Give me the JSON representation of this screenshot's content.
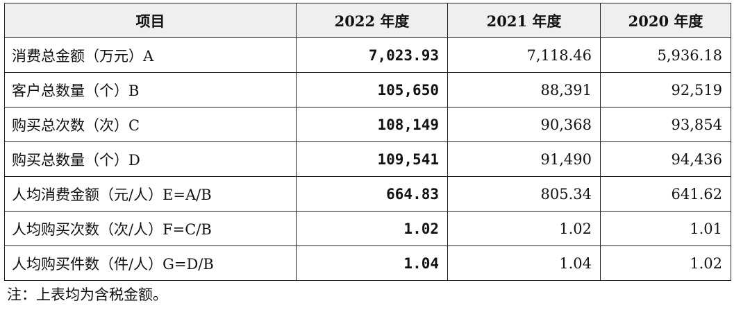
{
  "table": {
    "headers": [
      "项目",
      "2022 年度",
      "2021 年度",
      "2020 年度"
    ],
    "rows": [
      {
        "label": "消费总金额（万元）A",
        "y2022": "7,023.93",
        "y2021": "7,118.46",
        "y2020": "5,936.18"
      },
      {
        "label": "客户总数量（个）B",
        "y2022": "105,650",
        "y2021": "88,391",
        "y2020": "92,519"
      },
      {
        "label": "购买总次数（次）C",
        "y2022": "108,149",
        "y2021": "90,368",
        "y2020": "93,854"
      },
      {
        "label": "购买总数量（个）D",
        "y2022": "109,541",
        "y2021": "91,490",
        "y2020": "94,436"
      },
      {
        "label": "人均消费金额（元/人）E=A/B",
        "y2022": "664.83",
        "y2021": "805.34",
        "y2020": "641.62"
      },
      {
        "label": "人均购买次数（次/人）F=C/B",
        "y2022": "1.02",
        "y2021": "1.02",
        "y2020": "1.01"
      },
      {
        "label": "人均购买件数（件/人）G=D/B",
        "y2022": "1.04",
        "y2021": "1.04",
        "y2020": "1.02"
      }
    ]
  },
  "note": "注：上表均为含税金额。"
}
